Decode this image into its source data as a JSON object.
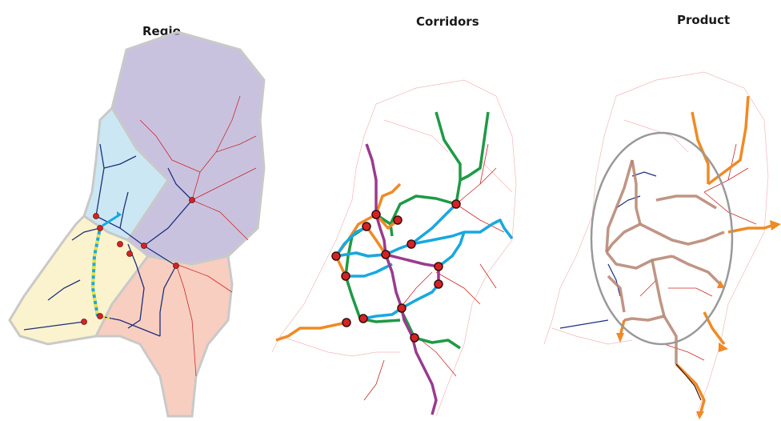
{
  "panels": {
    "regio": {
      "title": "Regio"
    },
    "corridors": {
      "title": "Corridors"
    },
    "product": {
      "title": "Product"
    }
  },
  "colors": {
    "region_north": "#b7aed4",
    "region_northwest": "#bfe1f1",
    "region_west": "#fbf2c8",
    "region_south": "#f7c9b9",
    "region_border": "#c9c9c9",
    "network_red": "#cc2a2a",
    "network_blue": "#1e2f7c",
    "network_pink": "#f2b9b9",
    "corridor_green": "#1e9a45",
    "corridor_orange": "#f08a24",
    "corridor_cyan": "#18a8e0",
    "corridor_purple": "#9a3b8e",
    "product_orange": "#f08a24",
    "product_brown": "#b5826e",
    "product_ellipse": "#999999",
    "node_fill": "#d32424",
    "yellow_dash": "#f0e23a"
  }
}
